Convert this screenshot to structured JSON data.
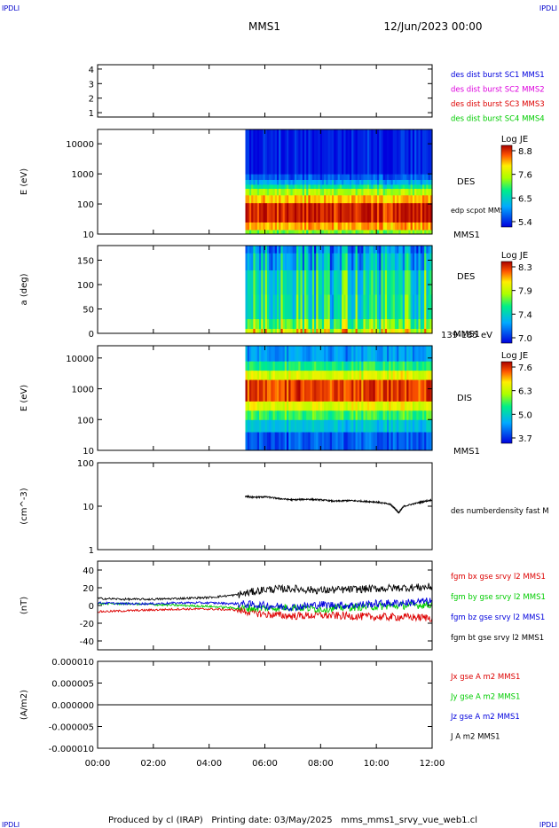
{
  "header": {
    "corner_left": "IPDLI",
    "corner_right": "IPDLI",
    "spacecraft": "MMS1",
    "datetime": "12/Jun/2023 00:00"
  },
  "footer": {
    "text": "Produced by cl (IRAP)   Printing date: 03/May/2025   mms_mms1_srvy_vue_web1.cl",
    "corner_left": "IPDLI",
    "corner_right": "IPDLI"
  },
  "colors": {
    "blue": "#0000dd",
    "magenta": "#dd00dd",
    "red": "#dd0000",
    "green": "#00cc00",
    "black": "#000000"
  },
  "time_axis": {
    "range_hours": [
      0,
      12
    ],
    "ticks": [
      "00:00",
      "02:00",
      "04:00",
      "06:00",
      "08:00",
      "10:00",
      "12:00"
    ]
  },
  "chart_data": [
    {
      "type": "line",
      "id": "burst",
      "yticks": [
        "1",
        "2",
        "3",
        "4"
      ],
      "ylim": [
        0.7,
        4.3
      ],
      "ylabel": "",
      "legend": [
        {
          "text": "des dist burst SC1 MMS1",
          "color": "#0000dd"
        },
        {
          "text": "des dist burst SC2 MMS2",
          "color": "#dd00dd"
        },
        {
          "text": "des dist burst SC3 MMS3",
          "color": "#dd0000"
        },
        {
          "text": "des dist burst SC4 MMS4",
          "color": "#00cc00"
        }
      ]
    },
    {
      "type": "heatmap",
      "id": "des-energy",
      "ylabel": "E (eV)",
      "yscale": "log",
      "ylim": [
        10,
        30000
      ],
      "yticks": [
        "10",
        "100",
        "1000",
        "10000"
      ],
      "data_start_hour": 5.3,
      "bands": [
        {
          "from": 10,
          "to": 14,
          "level": 0.55
        },
        {
          "from": 14,
          "to": 25,
          "level": 0.8
        },
        {
          "from": 25,
          "to": 110,
          "level": 0.95
        },
        {
          "from": 110,
          "to": 200,
          "level": 0.78
        },
        {
          "from": 200,
          "to": 330,
          "level": 0.6
        },
        {
          "from": 330,
          "to": 450,
          "level": 0.42
        },
        {
          "from": 450,
          "to": 650,
          "level": 0.25
        },
        {
          "from": 650,
          "to": 1000,
          "level": 0.12
        },
        {
          "from": 1000,
          "to": 30000,
          "level": 0.03
        }
      ],
      "labels": [
        "DES",
        "MMS1"
      ],
      "overlay_label": "edp scpot MMS1",
      "colorbar": {
        "title": "Log JE",
        "ticks": [
          "8.8",
          "7.6",
          "6.5",
          "5.4"
        ]
      }
    },
    {
      "type": "heatmap",
      "id": "des-pitch",
      "ylabel": "a (deg)",
      "yscale": "linear",
      "ylim": [
        0,
        180
      ],
      "yticks": [
        "0",
        "50",
        "100",
        "150"
      ],
      "data_start_hour": 5.3,
      "bands": [
        {
          "from": 0,
          "to": 10,
          "level": 0.7
        },
        {
          "from": 10,
          "to": 30,
          "level": 0.55
        },
        {
          "from": 30,
          "to": 80,
          "level": 0.42
        },
        {
          "from": 80,
          "to": 130,
          "level": 0.4
        },
        {
          "from": 130,
          "to": 165,
          "level": 0.3
        },
        {
          "from": 165,
          "to": 180,
          "level": 0.22
        }
      ],
      "labels": [
        "DES",
        "MMS1"
      ],
      "energy_range_label": "139-185 eV",
      "colorbar": {
        "title": "Log JE",
        "ticks": [
          "8.3",
          "7.9",
          "7.4",
          "7.0"
        ]
      }
    },
    {
      "type": "heatmap",
      "id": "dis-energy",
      "ylabel": "E (eV)",
      "yscale": "log",
      "ylim": [
        10,
        25000
      ],
      "yticks": [
        "10",
        "100",
        "1000",
        "10000"
      ],
      "data_start_hour": 5.3,
      "bands": [
        {
          "from": 10,
          "to": 40,
          "level": 0.12
        },
        {
          "from": 40,
          "to": 100,
          "level": 0.3
        },
        {
          "from": 100,
          "to": 200,
          "level": 0.48
        },
        {
          "from": 200,
          "to": 400,
          "level": 0.68
        },
        {
          "from": 400,
          "to": 2000,
          "level": 0.9
        },
        {
          "from": 2000,
          "to": 4000,
          "level": 0.68
        },
        {
          "from": 4000,
          "to": 8000,
          "level": 0.45
        },
        {
          "from": 8000,
          "to": 25000,
          "level": 0.22
        }
      ],
      "labels": [
        "DIS",
        "MMS1"
      ],
      "colorbar": {
        "title": "Log JE",
        "ticks": [
          "7.6",
          "6.3",
          "5.0",
          "3.7"
        ]
      }
    },
    {
      "type": "line",
      "id": "density",
      "ylabel": "(cm^-3)",
      "yscale": "log",
      "ylim": [
        1,
        100
      ],
      "yticks": [
        "1",
        "10",
        "100"
      ],
      "series": [
        {
          "name": "des numberdensity fast M",
          "color": "#000000",
          "x": [
            5.3,
            5.6,
            6.0,
            6.5,
            7.0,
            7.5,
            8.0,
            8.5,
            9.0,
            9.5,
            10.0,
            10.5,
            10.8,
            11.0,
            11.5,
            12.0
          ],
          "y": [
            17,
            16,
            16.5,
            15,
            14,
            14.5,
            14,
            13,
            13.5,
            13,
            12.5,
            11,
            7,
            10,
            12,
            14
          ]
        }
      ]
    },
    {
      "type": "line",
      "id": "fgm",
      "ylabel": "(nT)",
      "ylim": [
        -50,
        50
      ],
      "yticks": [
        "-40",
        "-20",
        "0",
        "20",
        "40"
      ],
      "series": [
        {
          "name": "fgm bx gse srvy l2 MMS1",
          "color": "#dd0000",
          "x": [
            0,
            1,
            2,
            3,
            4,
            5,
            6,
            7,
            8,
            9,
            10,
            11,
            12
          ],
          "y": [
            -7,
            -6,
            -5,
            -4,
            -4,
            -5,
            -10,
            -12,
            -11,
            -12,
            -13,
            -13,
            -14
          ]
        },
        {
          "name": "fgm by gse srvy l2 MMS1",
          "color": "#00cc00",
          "x": [
            0,
            1,
            2,
            3,
            4,
            5,
            6,
            7,
            8,
            9,
            10,
            11,
            12
          ],
          "y": [
            2,
            2,
            1,
            0,
            -1,
            -3,
            -3,
            -2,
            -4,
            -2,
            -1,
            0,
            1
          ]
        },
        {
          "name": "fgm bz gse srvy l2 MMS1",
          "color": "#0000dd",
          "x": [
            0,
            1,
            2,
            3,
            4,
            5,
            6,
            7,
            8,
            9,
            10,
            11,
            12
          ],
          "y": [
            3,
            2,
            2,
            3,
            3,
            2,
            0,
            -2,
            1,
            0,
            2,
            3,
            5
          ]
        },
        {
          "name": "fgm bt gse srvy l2 MMS1",
          "color": "#000000",
          "x": [
            0,
            1,
            2,
            3,
            4,
            5,
            6,
            7,
            8,
            9,
            10,
            11,
            12
          ],
          "y": [
            8,
            7,
            7,
            8,
            9,
            12,
            18,
            19,
            17,
            18,
            19,
            20,
            21
          ]
        }
      ]
    },
    {
      "type": "line",
      "id": "current",
      "ylabel": "(A/m2)",
      "ylim": [
        -1e-05,
        1e-05
      ],
      "yticks": [
        "-0.000010",
        "-0.000005",
        "0.000000",
        "0.000005",
        "0.000010"
      ],
      "series": [
        {
          "name": "Jx gse A m2 MMS1",
          "color": "#dd0000",
          "x": [
            0,
            12
          ],
          "y": [
            0,
            0
          ]
        },
        {
          "name": "Jy gse A m2 MMS1",
          "color": "#00cc00",
          "x": [
            0,
            12
          ],
          "y": [
            0,
            0
          ]
        },
        {
          "name": "Jz gse A m2 MMS1",
          "color": "#0000dd",
          "x": [
            0,
            12
          ],
          "y": [
            0,
            0
          ]
        },
        {
          "name": "J A m2 MMS1",
          "color": "#000000",
          "x": [
            0,
            12
          ],
          "y": [
            0,
            0
          ]
        }
      ]
    }
  ]
}
